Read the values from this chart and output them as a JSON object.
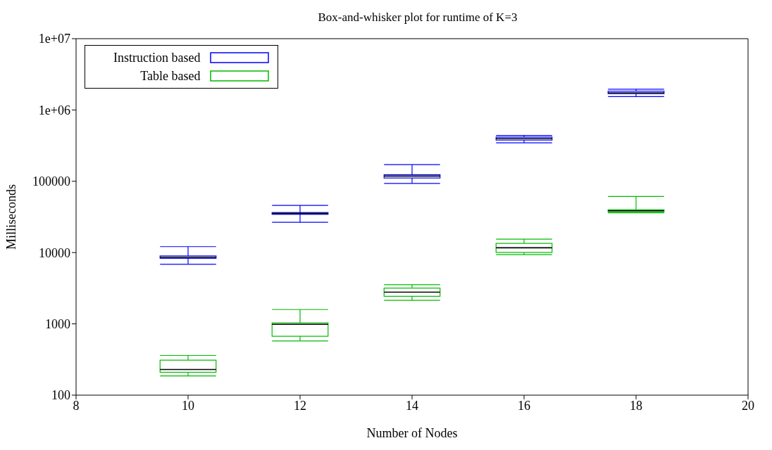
{
  "chart_data": {
    "type": "box",
    "title": "Box-and-whisker plot for runtime of K=3",
    "xlabel": "Number of Nodes",
    "ylabel": "Milliseconds",
    "xlim": [
      8,
      20
    ],
    "xticks": [
      8,
      10,
      12,
      14,
      16,
      18,
      20
    ],
    "ylim": [
      100,
      10000000
    ],
    "yticks": [
      100,
      1000,
      10000,
      100000,
      {
        "value": 1000000,
        "label": "1e+06"
      },
      {
        "value": 10000000,
        "label": "1e+07"
      }
    ],
    "log": "y",
    "legend": "top left",
    "series": [
      {
        "name": "Instruction based",
        "color": "#0000ff",
        "x": [
          10,
          12,
          14,
          16,
          18
        ],
        "boxes": [
          {
            "low": 6800,
            "q1": 8230,
            "median": 8480,
            "q3": 8900,
            "high": 12000
          },
          {
            "low": 26250,
            "q1": 34000,
            "median": 34900,
            "q3": 36000,
            "high": 45400
          },
          {
            "low": 92000,
            "q1": 109600,
            "median": 116700,
            "q3": 122000,
            "high": 168700
          },
          {
            "low": 341000,
            "q1": 372000,
            "median": 391000,
            "q3": 410000,
            "high": 433000
          },
          {
            "low": 1510000,
            "q1": 1660000,
            "median": 1710000,
            "q3": 1800000,
            "high": 1920000
          }
        ]
      },
      {
        "name": "Table based",
        "color": "#00bb00",
        "x": [
          10,
          12,
          14,
          16,
          18
        ],
        "boxes": [
          {
            "low": 186,
            "q1": 209,
            "median": 229,
            "q3": 309,
            "high": 360
          },
          {
            "low": 574,
            "q1": 668,
            "median": 980,
            "q3": 1026,
            "high": 1578
          },
          {
            "low": 2130,
            "q1": 2420,
            "median": 2765,
            "q3": 3150,
            "high": 3513
          },
          {
            "low": 9270,
            "q1": 9950,
            "median": 11560,
            "q3": 13330,
            "high": 15290
          },
          {
            "low": 35800,
            "q1": 36900,
            "median": 38100,
            "q3": 39400,
            "high": 60400
          }
        ]
      }
    ]
  }
}
